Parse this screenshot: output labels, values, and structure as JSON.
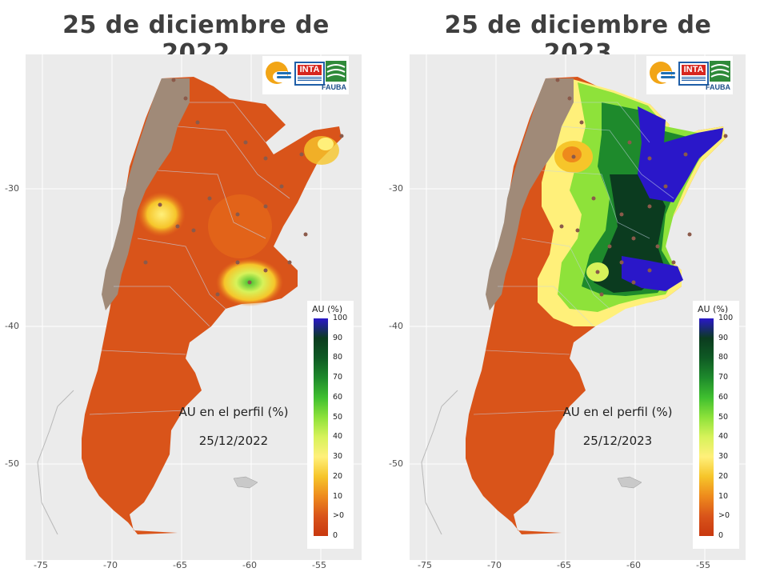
{
  "panels": [
    {
      "title": "25 de diciembre de 2022",
      "caption_line1": "AU en el perfil (%)",
      "caption_line2": "25/12/2022"
    },
    {
      "title": "25 de diciembre de 2023",
      "caption_line1": "AU en el perfil (%)",
      "caption_line2": "25/12/2023"
    }
  ],
  "axes": {
    "x_ticks": [
      "-75",
      "-70",
      "-65",
      "-60",
      "-55"
    ],
    "y_ticks": [
      "-30",
      "-40",
      "-50"
    ]
  },
  "legend": {
    "title": "AU (%)",
    "labels": [
      "100",
      "90",
      "80",
      "70",
      "60",
      "50",
      "40",
      "30",
      "20",
      "10",
      ">0",
      "0"
    ],
    "colors": [
      "#2a17c9",
      "#0b3b1f",
      "#0f5a24",
      "#1e8a2c",
      "#3fbf2f",
      "#8ee23a",
      "#d7f25a",
      "#fff07a",
      "#f6c52a",
      "#ee8a1c",
      "#d9541a",
      "#c8380f"
    ]
  },
  "logos": {
    "inta_text": "INTA",
    "fauba_text": "FAUBA"
  },
  "colors": {
    "dry": "#d9541a",
    "mountains": "#a08a78",
    "background": "#ebebeb",
    "wet": "#2a17c9"
  }
}
